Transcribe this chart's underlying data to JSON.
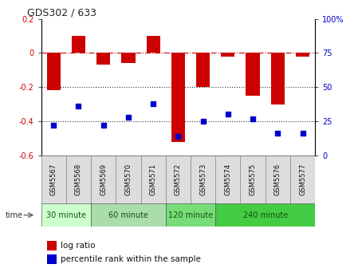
{
  "title": "GDS302 / 633",
  "samples": [
    "GSM5567",
    "GSM5568",
    "GSM5569",
    "GSM5570",
    "GSM5571",
    "GSM5572",
    "GSM5573",
    "GSM5574",
    "GSM5575",
    "GSM5576",
    "GSM5577"
  ],
  "log_ratio": [
    -0.22,
    0.1,
    -0.07,
    -0.06,
    0.1,
    -0.52,
    -0.2,
    -0.02,
    -0.25,
    -0.3,
    -0.02
  ],
  "percentile": [
    22,
    36,
    22,
    28,
    38,
    14,
    25,
    30,
    27,
    16,
    16
  ],
  "bar_color": "#cc0000",
  "dot_color": "#0000cc",
  "ylim_left": [
    -0.6,
    0.2
  ],
  "ylim_right": [
    0,
    100
  ],
  "right_ticks": [
    0,
    25,
    50,
    75,
    100
  ],
  "right_labels": [
    "0",
    "25",
    "50",
    "75",
    "100%"
  ],
  "left_ticks": [
    -0.6,
    -0.4,
    -0.2,
    0.0,
    0.2
  ],
  "left_labels": [
    "-0.6",
    "-0.4",
    "-0.2",
    "0",
    "0.2"
  ],
  "hline_zero_color": "#cc0000",
  "hline_dotted_color": "#333333",
  "groups": [
    {
      "label": "30 minute",
      "start": 0,
      "end": 1,
      "color": "#ccffcc"
    },
    {
      "label": "60 minute",
      "start": 2,
      "end": 4,
      "color": "#aaddaa"
    },
    {
      "label": "120 minute",
      "start": 5,
      "end": 6,
      "color": "#88dd88"
    },
    {
      "label": "240 minute",
      "start": 7,
      "end": 10,
      "color": "#44cc44"
    }
  ],
  "time_label": "time",
  "legend_log_label": "log ratio",
  "legend_pct_label": "percentile rank within the sample",
  "bg_color": "#ffffff",
  "tick_bg": "#dddddd"
}
